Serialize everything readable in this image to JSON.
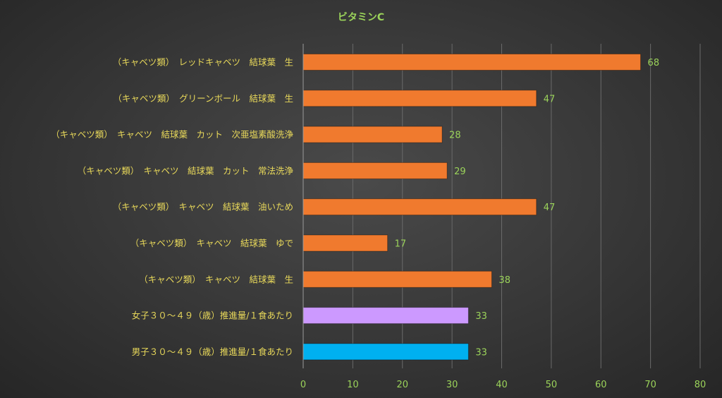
{
  "chart_data": {
    "type": "bar",
    "orientation": "horizontal",
    "title": "ビタミンC",
    "xlabel": "",
    "ylabel": "",
    "xlim": [
      0,
      80
    ],
    "ticks": [
      0,
      10,
      20,
      30,
      40,
      50,
      60,
      70,
      80
    ],
    "grid": true,
    "legend": "none",
    "categories": [
      "（キャベツ類）　レッドキャベツ　結球葉　生",
      "（キャベツ類）　グリーンボール　結球葉　生",
      "（キャベツ類）　キャベツ　結球葉　カット　次亜塩素酸洗浄",
      "（キャベツ類）　キャベツ　結球葉　カット　常法洗浄",
      "（キャベツ類）　キャベツ　結球葉　油いため",
      "（キャベツ類）　キャベツ　結球葉　ゆで",
      "（キャベツ類）　キャベツ　結球葉　生",
      "女子３０～４９（歳）推進量/１食あたり",
      "男子３０～４９（歳）推進量/１食あたり"
    ],
    "values": [
      68,
      47,
      28,
      29,
      47,
      17,
      38,
      33.3,
      33.3
    ],
    "value_labels": [
      "68",
      "47",
      "28",
      "29",
      "47",
      "17",
      "38",
      "33",
      "33"
    ],
    "bar_colors": [
      "#f07a2e",
      "#f07a2e",
      "#f07a2e",
      "#f07a2e",
      "#f07a2e",
      "#f07a2e",
      "#f07a2e",
      "#cc99ff",
      "#00b0f0"
    ],
    "colors": {
      "title": "#9bd35a",
      "category_label": "#e8d85a",
      "value_label": "#9bd35a",
      "tick_label": "#9bd35a"
    }
  }
}
